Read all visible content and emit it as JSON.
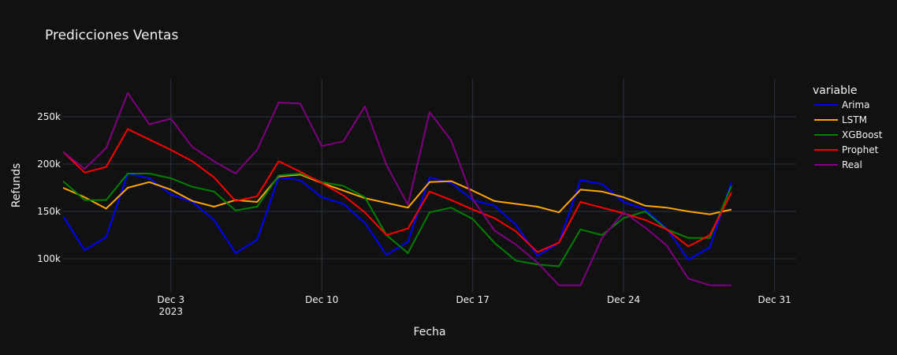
{
  "chart_data": {
    "type": "line",
    "title": "Predicciones Ventas",
    "xlabel": "Fecha",
    "ylabel": "Refunds",
    "x_start": "2023-11-28",
    "x_end": "2024-01-01",
    "x_ticks": [
      {
        "date": "2023-12-03",
        "label": "Dec 3",
        "sublabel": "2023"
      },
      {
        "date": "2023-12-10",
        "label": "Dec 10",
        "sublabel": ""
      },
      {
        "date": "2023-12-17",
        "label": "Dec 17",
        "sublabel": ""
      },
      {
        "date": "2023-12-24",
        "label": "Dec 24",
        "sublabel": ""
      },
      {
        "date": "2023-12-31",
        "label": "Dec 31",
        "sublabel": ""
      }
    ],
    "ylim": [
      65000,
      290000
    ],
    "y_ticks": [
      {
        "value": 100000,
        "label": "100k"
      },
      {
        "value": 150000,
        "label": "150k"
      },
      {
        "value": 200000,
        "label": "200k"
      },
      {
        "value": 250000,
        "label": "250k"
      }
    ],
    "grid": true,
    "legend_title": "variable",
    "legend_position": "right",
    "series": [
      {
        "name": "Arima",
        "color": "#0000ff",
        "values": [
          145000,
          109000,
          123000,
          190000,
          185000,
          168000,
          160000,
          141000,
          106000,
          120000,
          186000,
          183000,
          165000,
          158000,
          138000,
          104000,
          118000,
          186000,
          180000,
          162000,
          156000,
          136000,
          103000,
          117000,
          183000,
          179000,
          160000,
          152000,
          132000,
          99000,
          112000,
          181000
        ]
      },
      {
        "name": "LSTM",
        "color": "#ffa500",
        "values": [
          175000,
          165000,
          153000,
          175000,
          181000,
          173000,
          161000,
          155000,
          162000,
          160000,
          187000,
          189000,
          180000,
          172000,
          164000,
          159000,
          154000,
          181000,
          182000,
          172000,
          161000,
          158000,
          155000,
          149000,
          173000,
          171000,
          165000,
          156000,
          154000,
          150000,
          147000,
          152000
        ]
      },
      {
        "name": "XGBoost",
        "color": "#008000",
        "values": [
          182000,
          162000,
          162000,
          190000,
          190000,
          185000,
          176000,
          171000,
          151000,
          155000,
          188000,
          190000,
          181000,
          177000,
          165000,
          125000,
          106000,
          149000,
          154000,
          142000,
          117000,
          98000,
          94000,
          92000,
          131000,
          125000,
          143000,
          150000,
          131000,
          122000,
          122000,
          177000
        ]
      },
      {
        "name": "Prophet",
        "color": "#ff0000",
        "values": [
          213000,
          191000,
          197000,
          237000,
          226000,
          215000,
          203000,
          186000,
          161000,
          166000,
          203000,
          192000,
          180000,
          167000,
          149000,
          125000,
          132000,
          171000,
          162000,
          152000,
          143000,
          129000,
          107000,
          117000,
          160000,
          154000,
          148000,
          141000,
          131000,
          113000,
          125000,
          170000
        ]
      },
      {
        "name": "Real",
        "color": "#800080",
        "values": [
          213000,
          195000,
          217000,
          275000,
          242000,
          248000,
          218000,
          203000,
          190000,
          215000,
          265000,
          264000,
          219000,
          224000,
          261000,
          199000,
          157000,
          255000,
          225000,
          163000,
          130000,
          115000,
          96000,
          72000,
          72000,
          122000,
          149000,
          133000,
          114000,
          79000,
          72000,
          72000
        ]
      }
    ]
  }
}
